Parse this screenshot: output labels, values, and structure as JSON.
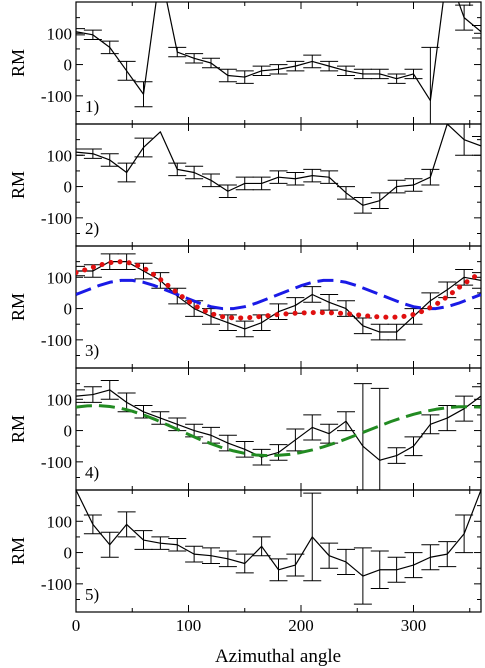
{
  "chart_data": [
    {
      "type": "line",
      "panel_label": "1)",
      "ylabel": "RM",
      "xlim": [
        0,
        360
      ],
      "ylim": [
        -190,
        200
      ],
      "yticks": [
        100,
        0,
        -100
      ],
      "series": [
        {
          "color": "#000000",
          "style": "solid",
          "error_bars": true,
          "x": [
            0,
            15,
            30,
            45,
            60,
            75,
            90,
            105,
            120,
            135,
            150,
            165,
            180,
            195,
            210,
            225,
            240,
            255,
            270,
            285,
            300,
            315,
            330,
            345,
            360
          ],
          "y": [
            105,
            95,
            55,
            -20,
            -95,
            300,
            40,
            20,
            5,
            -35,
            -40,
            -20,
            -15,
            -5,
            10,
            -5,
            -20,
            -30,
            -30,
            -45,
            -30,
            -115,
            300,
            150,
            105
          ],
          "err": [
            10,
            15,
            20,
            30,
            40,
            0,
            15,
            15,
            15,
            20,
            20,
            15,
            15,
            15,
            20,
            15,
            15,
            15,
            15,
            15,
            15,
            170,
            0,
            40,
            20
          ]
        }
      ]
    },
    {
      "type": "line",
      "panel_label": "2)",
      "ylabel": "RM",
      "xlim": [
        0,
        360
      ],
      "ylim": [
        -190,
        200
      ],
      "yticks": [
        100,
        0,
        -100
      ],
      "series": [
        {
          "color": "#000000",
          "style": "solid",
          "error_bars": true,
          "x": [
            0,
            15,
            30,
            45,
            60,
            75,
            90,
            105,
            120,
            135,
            150,
            165,
            180,
            195,
            210,
            225,
            240,
            255,
            270,
            285,
            300,
            315,
            330,
            345,
            360
          ],
          "y": [
            110,
            105,
            85,
            45,
            125,
            175,
            55,
            45,
            20,
            -15,
            10,
            10,
            30,
            25,
            35,
            30,
            -20,
            -60,
            -45,
            0,
            5,
            30,
            200,
            150,
            130
          ],
          "err": [
            10,
            15,
            20,
            30,
            30,
            0,
            20,
            20,
            20,
            20,
            20,
            20,
            20,
            20,
            20,
            20,
            20,
            25,
            25,
            20,
            20,
            25,
            0,
            50,
            30
          ]
        }
      ]
    },
    {
      "type": "line",
      "panel_label": "3)",
      "ylabel": "RM",
      "xlim": [
        0,
        360
      ],
      "ylim": [
        -190,
        200
      ],
      "yticks": [
        100,
        0,
        -100
      ],
      "series": [
        {
          "color": "#000000",
          "style": "solid",
          "error_bars": true,
          "x": [
            0,
            15,
            30,
            45,
            60,
            75,
            90,
            105,
            120,
            135,
            150,
            165,
            180,
            195,
            210,
            225,
            240,
            255,
            270,
            285,
            300,
            315,
            330,
            345,
            360
          ],
          "y": [
            120,
            120,
            150,
            150,
            120,
            90,
            40,
            0,
            -25,
            -45,
            -65,
            -45,
            -10,
            10,
            45,
            20,
            0,
            -55,
            -75,
            -75,
            -25,
            25,
            60,
            100,
            90
          ],
          "err": [
            15,
            20,
            25,
            25,
            25,
            25,
            25,
            25,
            25,
            25,
            25,
            25,
            25,
            25,
            25,
            25,
            25,
            25,
            25,
            25,
            25,
            25,
            25,
            25,
            25
          ]
        },
        {
          "color": "#1a1ae6",
          "style": "dashed",
          "error_bars": false,
          "x": [
            0,
            10,
            20,
            30,
            40,
            50,
            60,
            70,
            80,
            90,
            100,
            110,
            120,
            130,
            140,
            150,
            160,
            170,
            180,
            190,
            200,
            210,
            220,
            230,
            240,
            250,
            260,
            270,
            280,
            290,
            300,
            310,
            320,
            330,
            340,
            350,
            360
          ],
          "y": [
            45,
            59,
            73,
            84,
            90,
            90,
            84,
            73,
            59,
            45,
            31,
            17,
            6,
            0,
            0,
            6,
            17,
            31,
            45,
            59,
            73,
            84,
            90,
            90,
            84,
            73,
            59,
            45,
            31,
            17,
            6,
            0,
            0,
            6,
            17,
            31,
            45
          ]
        },
        {
          "color": "#e01010",
          "style": "dotted",
          "error_bars": false,
          "x": [
            0,
            10,
            20,
            30,
            40,
            50,
            60,
            70,
            80,
            90,
            100,
            110,
            120,
            130,
            140,
            150,
            160,
            170,
            180,
            190,
            200,
            210,
            220,
            230,
            240,
            250,
            260,
            270,
            280,
            290,
            300,
            310,
            320,
            330,
            340,
            350,
            360
          ],
          "y": [
            115,
            126,
            138,
            147,
            150,
            145,
            130,
            107,
            79,
            50,
            23,
            0,
            -16,
            -26,
            -30,
            -30,
            -27,
            -23,
            -19,
            -16,
            -14,
            -13,
            -13,
            -14,
            -16,
            -20,
            -24,
            -27,
            -28,
            -26,
            -19,
            -6,
            13,
            38,
            66,
            92,
            115
          ]
        }
      ]
    },
    {
      "type": "line",
      "panel_label": "4)",
      "ylabel": "RM",
      "xlim": [
        0,
        360
      ],
      "ylim": [
        -190,
        200
      ],
      "yticks": [
        100,
        0,
        -100
      ],
      "series": [
        {
          "color": "#000000",
          "style": "solid",
          "error_bars": true,
          "x": [
            0,
            15,
            30,
            45,
            60,
            75,
            90,
            105,
            120,
            135,
            150,
            165,
            180,
            195,
            210,
            225,
            240,
            255,
            270,
            285,
            300,
            315,
            330,
            345,
            360
          ],
          "y": [
            110,
            115,
            130,
            90,
            60,
            40,
            20,
            0,
            -15,
            -40,
            -60,
            -85,
            -70,
            -30,
            10,
            -10,
            30,
            -50,
            -95,
            -80,
            -50,
            20,
            40,
            70,
            110
          ],
          "err": [
            20,
            25,
            30,
            30,
            20,
            20,
            20,
            20,
            25,
            25,
            25,
            25,
            25,
            35,
            40,
            30,
            30,
            200,
            230,
            25,
            30,
            30,
            40,
            40,
            30
          ]
        },
        {
          "color": "#228b22",
          "style": "dashed",
          "error_bars": false,
          "x": [
            0,
            10,
            20,
            30,
            40,
            50,
            60,
            70,
            80,
            90,
            100,
            110,
            120,
            130,
            140,
            150,
            160,
            170,
            180,
            190,
            200,
            210,
            220,
            230,
            240,
            250,
            260,
            270,
            280,
            290,
            300,
            310,
            320,
            330,
            340,
            350,
            360
          ],
          "y": [
            75,
            79,
            80,
            77,
            71,
            62,
            50,
            36,
            20,
            4,
            -12,
            -28,
            -42,
            -55,
            -65,
            -73,
            -78,
            -80,
            -79,
            -76,
            -70,
            -62,
            -52,
            -40,
            -27,
            -13,
            1,
            15,
            29,
            41,
            52,
            61,
            68,
            73,
            76,
            76,
            75
          ]
        }
      ]
    },
    {
      "type": "line",
      "panel_label": "5)",
      "ylabel": "RM",
      "xlabel": "Azimuthal angle",
      "xlim": [
        0,
        360
      ],
      "ylim": [
        -190,
        200
      ],
      "yticks": [
        100,
        0,
        -100
      ],
      "xticks": [
        0,
        100,
        200,
        300
      ],
      "series": [
        {
          "color": "#000000",
          "style": "solid",
          "error_bars": true,
          "x": [
            0,
            15,
            30,
            45,
            60,
            75,
            90,
            105,
            120,
            135,
            150,
            165,
            180,
            195,
            210,
            225,
            240,
            255,
            270,
            285,
            300,
            315,
            330,
            345,
            360
          ],
          "y": [
            200,
            90,
            25,
            90,
            40,
            30,
            25,
            -5,
            -10,
            -20,
            -35,
            20,
            -55,
            -40,
            50,
            -10,
            -30,
            -75,
            -55,
            -55,
            -40,
            -15,
            -5,
            60,
            200
          ],
          "err": [
            0,
            30,
            40,
            40,
            30,
            20,
            20,
            25,
            25,
            25,
            30,
            30,
            35,
            35,
            140,
            40,
            40,
            90,
            60,
            40,
            40,
            40,
            40,
            60,
            0
          ]
        }
      ]
    }
  ]
}
